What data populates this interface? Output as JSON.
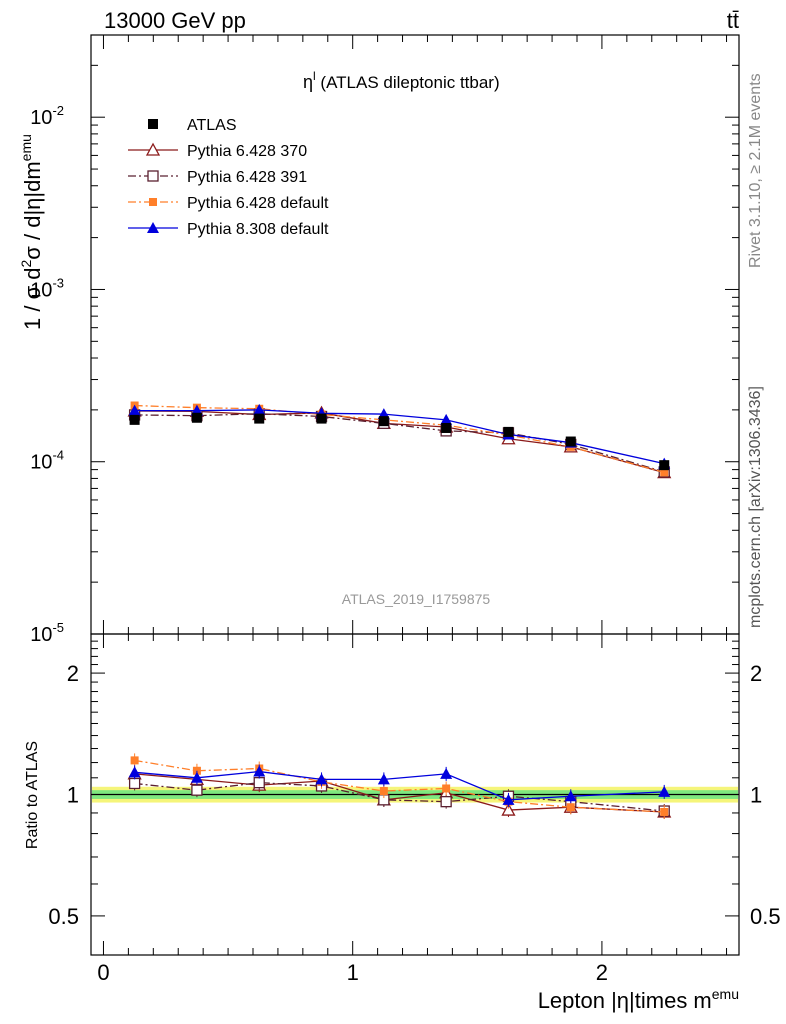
{
  "header": {
    "beam": "13000 GeV pp",
    "process": "tt̄"
  },
  "side_labels": {
    "rivet": "Rivet 3.1.10, ≥ 2.1M events",
    "mcplots": "mcplots.cern.ch [arXiv:1306.3436]"
  },
  "colors": {
    "atlas": "#000000",
    "py6_370": "#8b1a1a",
    "py6_391": "#5a2030",
    "py6_default": "#ff7f2a",
    "py8_default": "#0000dd",
    "band_inner": "#7fe87f",
    "band_outer": "#f5f57a"
  },
  "chart_data": [
    {
      "type": "line",
      "title": "η^l (ATLAS dileptonic ttbar)",
      "title_main": "η",
      "title_sup": "l",
      "title_rest": " (ATLAS dileptonic ttbar)",
      "watermark": "ATLAS_2019_I1759875",
      "ylabel": "1 / σ d²σ / d|η|dm^emu",
      "ylabel_parts": {
        "a": "1 / σ  d",
        "b": "2",
        "c": "σ / d|η|dm",
        "d": "emu"
      },
      "yscale": "log",
      "ylim": [
        1e-05,
        0.03
      ],
      "xlim": [
        -0.05,
        2.55
      ],
      "yticks": [
        {
          "base": "10",
          "exp": "-2",
          "value": 0.01
        },
        {
          "base": "10",
          "exp": "-3",
          "value": 0.001
        },
        {
          "base": "10",
          "exp": "-4",
          "value": 0.0001
        },
        {
          "base": "10",
          "exp": "-5",
          "value": 1e-05
        }
      ],
      "legend_position": "top-left",
      "x": [
        0.125,
        0.375,
        0.625,
        0.875,
        1.125,
        1.375,
        1.625,
        1.875,
        2.25
      ],
      "series": [
        {
          "name": "ATLAS",
          "key": "atlas",
          "marker": "square-filled",
          "line": "none",
          "values": [
            0.000175,
            0.00018,
            0.000178,
            0.000178,
            0.000172,
            0.000157,
            0.000149,
            0.000131,
            9.55e-05
          ]
        },
        {
          "name": "Pythia 6.428 370",
          "key": "py6_370",
          "marker": "triangle-open",
          "line": "solid",
          "values": [
            0.000197,
            0.000196,
            0.000188,
            0.000192,
            0.000167,
            0.000159,
            0.000136,
            0.000122,
            8.65e-05
          ]
        },
        {
          "name": "Pythia 6.428 391",
          "key": "py6_391",
          "marker": "square-open",
          "line": "dashdot",
          "values": [
            0.000187,
            0.000185,
            0.00019,
            0.000183,
            0.000167,
            0.000151,
            0.000147,
            0.000126,
            8.73e-05
          ]
        },
        {
          "name": "Pythia 6.428 default",
          "key": "py6_default",
          "marker": "square-filled",
          "line": "dashdot",
          "values": [
            0.000212,
            0.000206,
            0.000203,
            0.000188,
            0.000175,
            0.000163,
            0.000143,
            0.000122,
            8.67e-05
          ]
        },
        {
          "name": "Pythia 8.308 default",
          "key": "py8_default",
          "marker": "triangle-filled",
          "line": "solid",
          "values": [
            0.000198,
            0.000198,
            0.0002,
            0.000191,
            0.000189,
            0.000175,
            0.000144,
            0.000129,
            9.75e-05
          ]
        }
      ]
    },
    {
      "type": "line",
      "ylabel": "Ratio to ATLAS",
      "xlabel": "Lepton |η|times m^emu",
      "xlabel_main": "Lepton |η|times m",
      "xlabel_sup": "emu",
      "yscale": "log",
      "ylim": [
        0.4,
        2.5
      ],
      "xlim": [
        -0.05,
        2.55
      ],
      "yticks": [
        {
          "label": "2",
          "value": 2
        },
        {
          "label": "1",
          "value": 1
        },
        {
          "label": "0.5",
          "value": 0.5
        }
      ],
      "xticks": [
        {
          "label": "0",
          "value": 0
        },
        {
          "label": "1",
          "value": 1
        },
        {
          "label": "2",
          "value": 2
        }
      ],
      "band": {
        "inner": [
          0.975,
          1.025
        ],
        "outer": [
          0.955,
          1.045
        ]
      },
      "x": [
        0.125,
        0.375,
        0.625,
        0.875,
        1.125,
        1.375,
        1.625,
        1.875,
        2.25
      ],
      "series": [
        {
          "name": "Pythia 6.428 370",
          "key": "py6_370",
          "marker": "triangle-open",
          "line": "solid",
          "values": [
            1.125,
            1.09,
            1.055,
            1.08,
            0.97,
            1.01,
            0.915,
            0.93,
            0.905
          ]
        },
        {
          "name": "Pythia 6.428 391",
          "key": "py6_391",
          "marker": "square-open",
          "line": "dashdot",
          "values": [
            1.065,
            1.025,
            1.07,
            1.05,
            0.97,
            0.96,
            0.99,
            0.96,
            0.91
          ]
        },
        {
          "name": "Pythia 6.428 default",
          "key": "py6_default",
          "marker": "square-filled",
          "line": "dashdot",
          "values": [
            1.215,
            1.145,
            1.16,
            1.075,
            1.02,
            1.035,
            0.96,
            0.93,
            0.905
          ]
        },
        {
          "name": "Pythia 8.308 default",
          "key": "py8_default",
          "marker": "triangle-filled",
          "line": "solid",
          "values": [
            1.135,
            1.1,
            1.14,
            1.09,
            1.09,
            1.125,
            0.97,
            0.99,
            1.015
          ]
        }
      ]
    }
  ]
}
